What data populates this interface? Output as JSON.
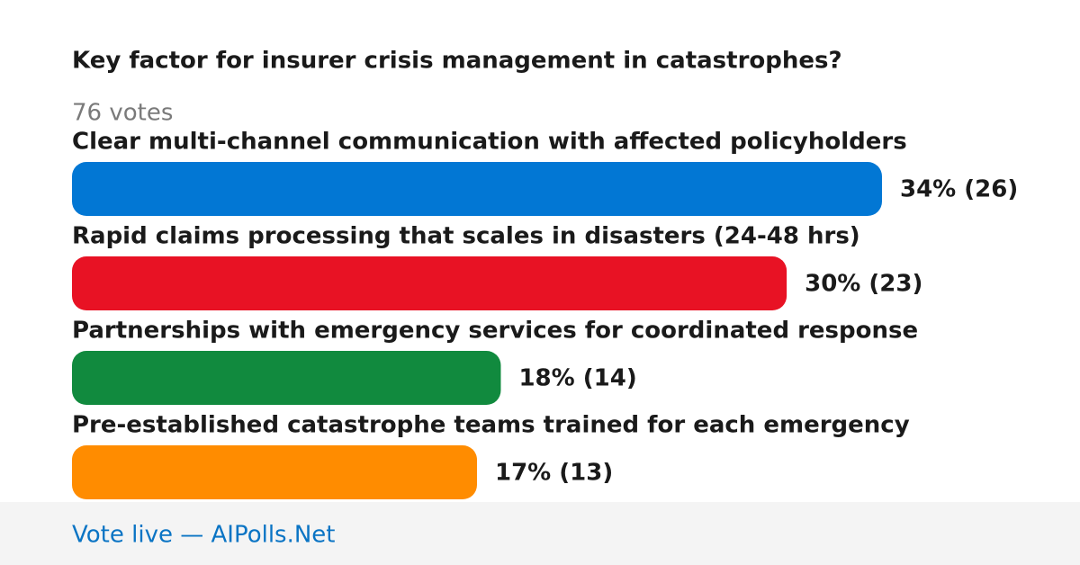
{
  "chart_data": {
    "type": "bar",
    "orientation": "horizontal",
    "title": "Key factor for insurer crisis management in catastrophes?",
    "subtitle": "76 votes",
    "categories": [
      "Clear multi-channel communication with affected policyholders",
      "Rapid claims processing that scales in disasters (24-48 hrs)",
      "Partnerships with emergency services for coordinated response",
      "Pre-established catastrophe teams trained for each emergency"
    ],
    "values": [
      34,
      30,
      18,
      17
    ],
    "value_labels": [
      "34% (26)",
      "30% (23)",
      "18% (14)",
      "17% (13)"
    ],
    "colors": [
      "#0277d4",
      "#e81224",
      "#118a3e",
      "#ff8c00"
    ],
    "footer": "Vote live — AIPolls.Net"
  }
}
